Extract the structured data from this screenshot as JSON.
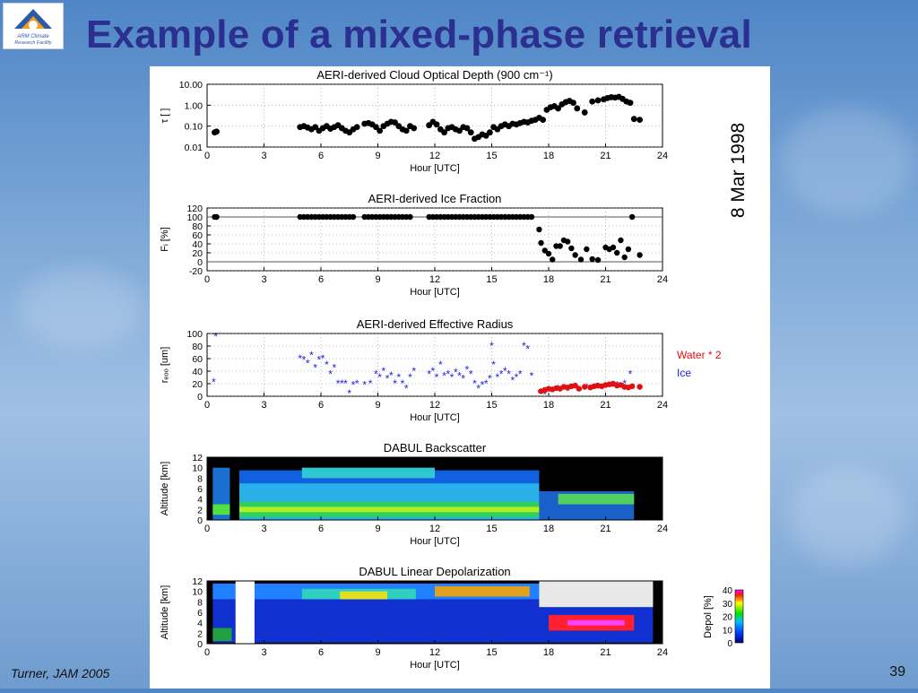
{
  "slide": {
    "title": "Example of a mixed-phase retrieval",
    "logo_text_1": "ARM Climate",
    "logo_text_2": "Research Facility",
    "citation": "Turner, JAM 2005",
    "page_number": "39",
    "date_label": "8 Mar 1998"
  },
  "colors": {
    "title": "#2b2f8f",
    "water": "#e01010",
    "ice": "#2020e0",
    "point": "#000000"
  },
  "chart_data": [
    {
      "type": "scatter",
      "title": "AERI-derived Cloud Optical Depth (900 cm⁻¹)",
      "xlabel": "Hour [UTC]",
      "ylabel": "τ [ ]",
      "xlim": [
        0,
        24
      ],
      "ylim": [
        0.01,
        10
      ],
      "yscale": "log",
      "xticks": [
        "0",
        "3",
        "6",
        "9",
        "12",
        "15",
        "18",
        "21",
        "24"
      ],
      "yticks": [
        "10.00",
        "1.00",
        "0.10",
        "0.01"
      ],
      "grid": true,
      "points": [
        [
          0.4,
          0.05
        ],
        [
          0.5,
          0.055
        ],
        [
          4.9,
          0.09
        ],
        [
          5.1,
          0.1
        ],
        [
          5.3,
          0.085
        ],
        [
          5.5,
          0.07
        ],
        [
          5.7,
          0.09
        ],
        [
          5.9,
          0.06
        ],
        [
          6.1,
          0.08
        ],
        [
          6.3,
          0.1
        ],
        [
          6.5,
          0.075
        ],
        [
          6.7,
          0.09
        ],
        [
          6.9,
          0.11
        ],
        [
          7.1,
          0.08
        ],
        [
          7.3,
          0.06
        ],
        [
          7.5,
          0.05
        ],
        [
          7.7,
          0.07
        ],
        [
          7.9,
          0.09
        ],
        [
          8.3,
          0.13
        ],
        [
          8.5,
          0.14
        ],
        [
          8.7,
          0.12
        ],
        [
          8.9,
          0.09
        ],
        [
          9.1,
          0.06
        ],
        [
          9.3,
          0.1
        ],
        [
          9.5,
          0.13
        ],
        [
          9.7,
          0.16
        ],
        [
          9.9,
          0.15
        ],
        [
          10.1,
          0.1
        ],
        [
          10.3,
          0.07
        ],
        [
          10.5,
          0.06
        ],
        [
          10.7,
          0.1
        ],
        [
          10.9,
          0.08
        ],
        [
          11.7,
          0.11
        ],
        [
          11.9,
          0.16
        ],
        [
          12.1,
          0.12
        ],
        [
          12.3,
          0.07
        ],
        [
          12.5,
          0.05
        ],
        [
          12.7,
          0.08
        ],
        [
          12.9,
          0.09
        ],
        [
          13.1,
          0.07
        ],
        [
          13.3,
          0.06
        ],
        [
          13.5,
          0.09
        ],
        [
          13.7,
          0.08
        ],
        [
          13.9,
          0.05
        ],
        [
          14.1,
          0.025
        ],
        [
          14.3,
          0.03
        ],
        [
          14.5,
          0.04
        ],
        [
          14.7,
          0.035
        ],
        [
          14.9,
          0.05
        ],
        [
          15.1,
          0.09
        ],
        [
          15.3,
          0.07
        ],
        [
          15.5,
          0.1
        ],
        [
          15.7,
          0.12
        ],
        [
          15.9,
          0.1
        ],
        [
          16.1,
          0.13
        ],
        [
          16.3,
          0.12
        ],
        [
          16.5,
          0.14
        ],
        [
          16.7,
          0.16
        ],
        [
          16.9,
          0.15
        ],
        [
          17.1,
          0.18
        ],
        [
          17.3,
          0.2
        ],
        [
          17.5,
          0.25
        ],
        [
          17.7,
          0.2
        ],
        [
          17.9,
          0.6
        ],
        [
          18.1,
          0.8
        ],
        [
          18.3,
          0.9
        ],
        [
          18.5,
          0.7
        ],
        [
          18.7,
          1.1
        ],
        [
          18.9,
          1.4
        ],
        [
          19.1,
          1.6
        ],
        [
          19.3,
          1.3
        ],
        [
          19.5,
          0.7
        ],
        [
          19.9,
          0.45
        ],
        [
          20.3,
          1.5
        ],
        [
          20.6,
          1.7
        ],
        [
          20.9,
          1.9
        ],
        [
          21.1,
          2.2
        ],
        [
          21.3,
          2.4
        ],
        [
          21.5,
          2.3
        ],
        [
          21.7,
          2.5
        ],
        [
          21.9,
          2.0
        ],
        [
          22.1,
          1.5
        ],
        [
          22.3,
          1.3
        ],
        [
          22.5,
          0.22
        ],
        [
          22.8,
          0.2
        ]
      ]
    },
    {
      "type": "scatter",
      "title": "AERI-derived Ice Fraction",
      "xlabel": "Hour [UTC]",
      "ylabel": "Fᵢ [%]",
      "xlim": [
        0,
        24
      ],
      "ylim": [
        -20,
        120
      ],
      "xticks": [
        "0",
        "3",
        "6",
        "9",
        "12",
        "15",
        "18",
        "21",
        "24"
      ],
      "yticks": [
        "120",
        "100",
        "80",
        "60",
        "40",
        "20",
        "0",
        "-20"
      ],
      "grid": true,
      "points": [
        [
          0.4,
          100
        ],
        [
          0.5,
          100
        ],
        [
          4.9,
          100
        ],
        [
          5.1,
          100
        ],
        [
          5.3,
          100
        ],
        [
          5.5,
          100
        ],
        [
          5.7,
          100
        ],
        [
          5.9,
          100
        ],
        [
          6.1,
          100
        ],
        [
          6.3,
          100
        ],
        [
          6.5,
          100
        ],
        [
          6.7,
          100
        ],
        [
          6.9,
          100
        ],
        [
          7.1,
          100
        ],
        [
          7.3,
          100
        ],
        [
          7.5,
          100
        ],
        [
          7.7,
          100
        ],
        [
          8.3,
          100
        ],
        [
          8.5,
          100
        ],
        [
          8.7,
          100
        ],
        [
          8.9,
          100
        ],
        [
          9.1,
          100
        ],
        [
          9.3,
          100
        ],
        [
          9.5,
          100
        ],
        [
          9.7,
          100
        ],
        [
          9.9,
          100
        ],
        [
          10.1,
          100
        ],
        [
          10.3,
          100
        ],
        [
          10.5,
          100
        ],
        [
          10.7,
          100
        ],
        [
          11.7,
          100
        ],
        [
          11.9,
          100
        ],
        [
          12.1,
          100
        ],
        [
          12.3,
          100
        ],
        [
          12.5,
          100
        ],
        [
          12.7,
          100
        ],
        [
          12.9,
          100
        ],
        [
          13.1,
          100
        ],
        [
          13.3,
          100
        ],
        [
          13.5,
          100
        ],
        [
          13.7,
          100
        ],
        [
          13.9,
          100
        ],
        [
          14.1,
          100
        ],
        [
          14.3,
          100
        ],
        [
          14.5,
          100
        ],
        [
          14.7,
          100
        ],
        [
          14.9,
          100
        ],
        [
          15.1,
          100
        ],
        [
          15.3,
          100
        ],
        [
          15.5,
          100
        ],
        [
          15.7,
          100
        ],
        [
          15.9,
          100
        ],
        [
          16.1,
          100
        ],
        [
          16.3,
          100
        ],
        [
          16.5,
          100
        ],
        [
          16.7,
          100
        ],
        [
          16.9,
          100
        ],
        [
          17.1,
          100
        ],
        [
          17.5,
          72
        ],
        [
          17.6,
          42
        ],
        [
          17.8,
          25
        ],
        [
          18.0,
          18
        ],
        [
          18.2,
          5
        ],
        [
          18.4,
          35
        ],
        [
          18.6,
          35
        ],
        [
          18.8,
          48
        ],
        [
          19.0,
          45
        ],
        [
          19.2,
          30
        ],
        [
          19.4,
          15
        ],
        [
          19.7,
          5
        ],
        [
          20.0,
          28
        ],
        [
          20.3,
          6
        ],
        [
          20.6,
          4
        ],
        [
          21.0,
          32
        ],
        [
          21.2,
          28
        ],
        [
          21.4,
          32
        ],
        [
          21.6,
          20
        ],
        [
          21.8,
          48
        ],
        [
          22.0,
          10
        ],
        [
          22.2,
          28
        ],
        [
          22.4,
          100
        ],
        [
          22.8,
          15
        ]
      ]
    },
    {
      "type": "scatter",
      "title": "AERI-derived Effective Radius",
      "xlabel": "Hour [UTC]",
      "ylabel": "rₑₒₒ [um]",
      "xlim": [
        0,
        24
      ],
      "ylim": [
        0,
        100
      ],
      "xticks": [
        "0",
        "3",
        "6",
        "9",
        "12",
        "15",
        "18",
        "21",
        "24"
      ],
      "yticks": [
        "100",
        "80",
        "60",
        "40",
        "20",
        "0"
      ],
      "grid": true,
      "legend": [
        "Water * 2",
        "Ice"
      ],
      "series": [
        {
          "name": "Ice",
          "points": [
            [
              0.35,
              22
            ],
            [
              0.45,
              95
            ],
            [
              4.9,
              60
            ],
            [
              5.1,
              58
            ],
            [
              5.3,
              52
            ],
            [
              5.5,
              65
            ],
            [
              5.7,
              45
            ],
            [
              5.9,
              58
            ],
            [
              6.1,
              60
            ],
            [
              6.3,
              50
            ],
            [
              6.5,
              35
            ],
            [
              6.7,
              45
            ],
            [
              6.9,
              20
            ],
            [
              7.1,
              20
            ],
            [
              7.3,
              20
            ],
            [
              7.5,
              4
            ],
            [
              7.7,
              18
            ],
            [
              7.9,
              20
            ],
            [
              8.3,
              18
            ],
            [
              8.6,
              20
            ],
            [
              8.9,
              35
            ],
            [
              9.1,
              30
            ],
            [
              9.3,
              40
            ],
            [
              9.5,
              28
            ],
            [
              9.7,
              33
            ],
            [
              9.9,
              20
            ],
            [
              10.1,
              30
            ],
            [
              10.3,
              20
            ],
            [
              10.5,
              12
            ],
            [
              10.7,
              30
            ],
            [
              10.9,
              40
            ],
            [
              11.7,
              35
            ],
            [
              11.9,
              40
            ],
            [
              12.1,
              30
            ],
            [
              12.3,
              50
            ],
            [
              12.5,
              32
            ],
            [
              12.7,
              35
            ],
            [
              12.9,
              30
            ],
            [
              13.1,
              38
            ],
            [
              13.3,
              32
            ],
            [
              13.5,
              28
            ],
            [
              13.7,
              42
            ],
            [
              13.9,
              35
            ],
            [
              14.1,
              20
            ],
            [
              14.3,
              12
            ],
            [
              14.5,
              18
            ],
            [
              14.7,
              20
            ],
            [
              14.9,
              28
            ],
            [
              15.0,
              80
            ],
            [
              15.1,
              50
            ],
            [
              15.3,
              30
            ],
            [
              15.5,
              35
            ],
            [
              15.7,
              40
            ],
            [
              15.9,
              35
            ],
            [
              16.1,
              25
            ],
            [
              16.3,
              30
            ],
            [
              16.5,
              35
            ],
            [
              16.7,
              80
            ],
            [
              16.9,
              75
            ],
            [
              17.1,
              32
            ],
            [
              17.5,
              5
            ],
            [
              17.8,
              2
            ],
            [
              18.1,
              8
            ],
            [
              18.5,
              12
            ],
            [
              19.0,
              8
            ],
            [
              19.5,
              12
            ],
            [
              20.0,
              14
            ],
            [
              20.5,
              15
            ],
            [
              21.0,
              15
            ],
            [
              21.3,
              14
            ],
            [
              21.6,
              18
            ],
            [
              22.0,
              20
            ],
            [
              22.3,
              35
            ]
          ]
        },
        {
          "name": "Water * 2",
          "points": [
            [
              17.6,
              8
            ],
            [
              17.8,
              10
            ],
            [
              18.0,
              12
            ],
            [
              18.2,
              11
            ],
            [
              18.4,
              13
            ],
            [
              18.6,
              12
            ],
            [
              18.8,
              15
            ],
            [
              19.0,
              14
            ],
            [
              19.2,
              16
            ],
            [
              19.4,
              17
            ],
            [
              19.6,
              12
            ],
            [
              19.9,
              15
            ],
            [
              20.2,
              14
            ],
            [
              20.4,
              16
            ],
            [
              20.6,
              17
            ],
            [
              20.8,
              16
            ],
            [
              21.0,
              18
            ],
            [
              21.2,
              19
            ],
            [
              21.4,
              20
            ],
            [
              21.6,
              17
            ],
            [
              21.8,
              18
            ],
            [
              22.0,
              15
            ],
            [
              22.2,
              14
            ],
            [
              22.4,
              16
            ],
            [
              22.8,
              15
            ]
          ]
        }
      ]
    },
    {
      "type": "heatmap",
      "title": "DABUL Backscatter",
      "xlabel": "Hour [UTC]",
      "ylabel": "Altitude [km]",
      "xlim": [
        0,
        24
      ],
      "ylim": [
        0,
        12
      ],
      "xticks": [
        "0",
        "3",
        "6",
        "9",
        "12",
        "15",
        "18",
        "21",
        "24"
      ],
      "yticks": [
        "12",
        "10",
        "8",
        "6",
        "4",
        "2",
        "0"
      ]
    },
    {
      "type": "heatmap",
      "title": "DABUL Linear Depolarization",
      "xlabel": "Hour [UTC]",
      "ylabel": "Altitude [km]",
      "xlim": [
        0,
        24
      ],
      "ylim": [
        0,
        12
      ],
      "xticks": [
        "0",
        "3",
        "6",
        "9",
        "12",
        "15",
        "18",
        "21",
        "24"
      ],
      "yticks": [
        "12",
        "10",
        "8",
        "6",
        "4",
        "2",
        "0"
      ],
      "colorbar": {
        "label": "Depol [%]",
        "ticks": [
          "40",
          "30",
          "20",
          "10",
          "0"
        ],
        "range": [
          0,
          40
        ]
      }
    }
  ]
}
